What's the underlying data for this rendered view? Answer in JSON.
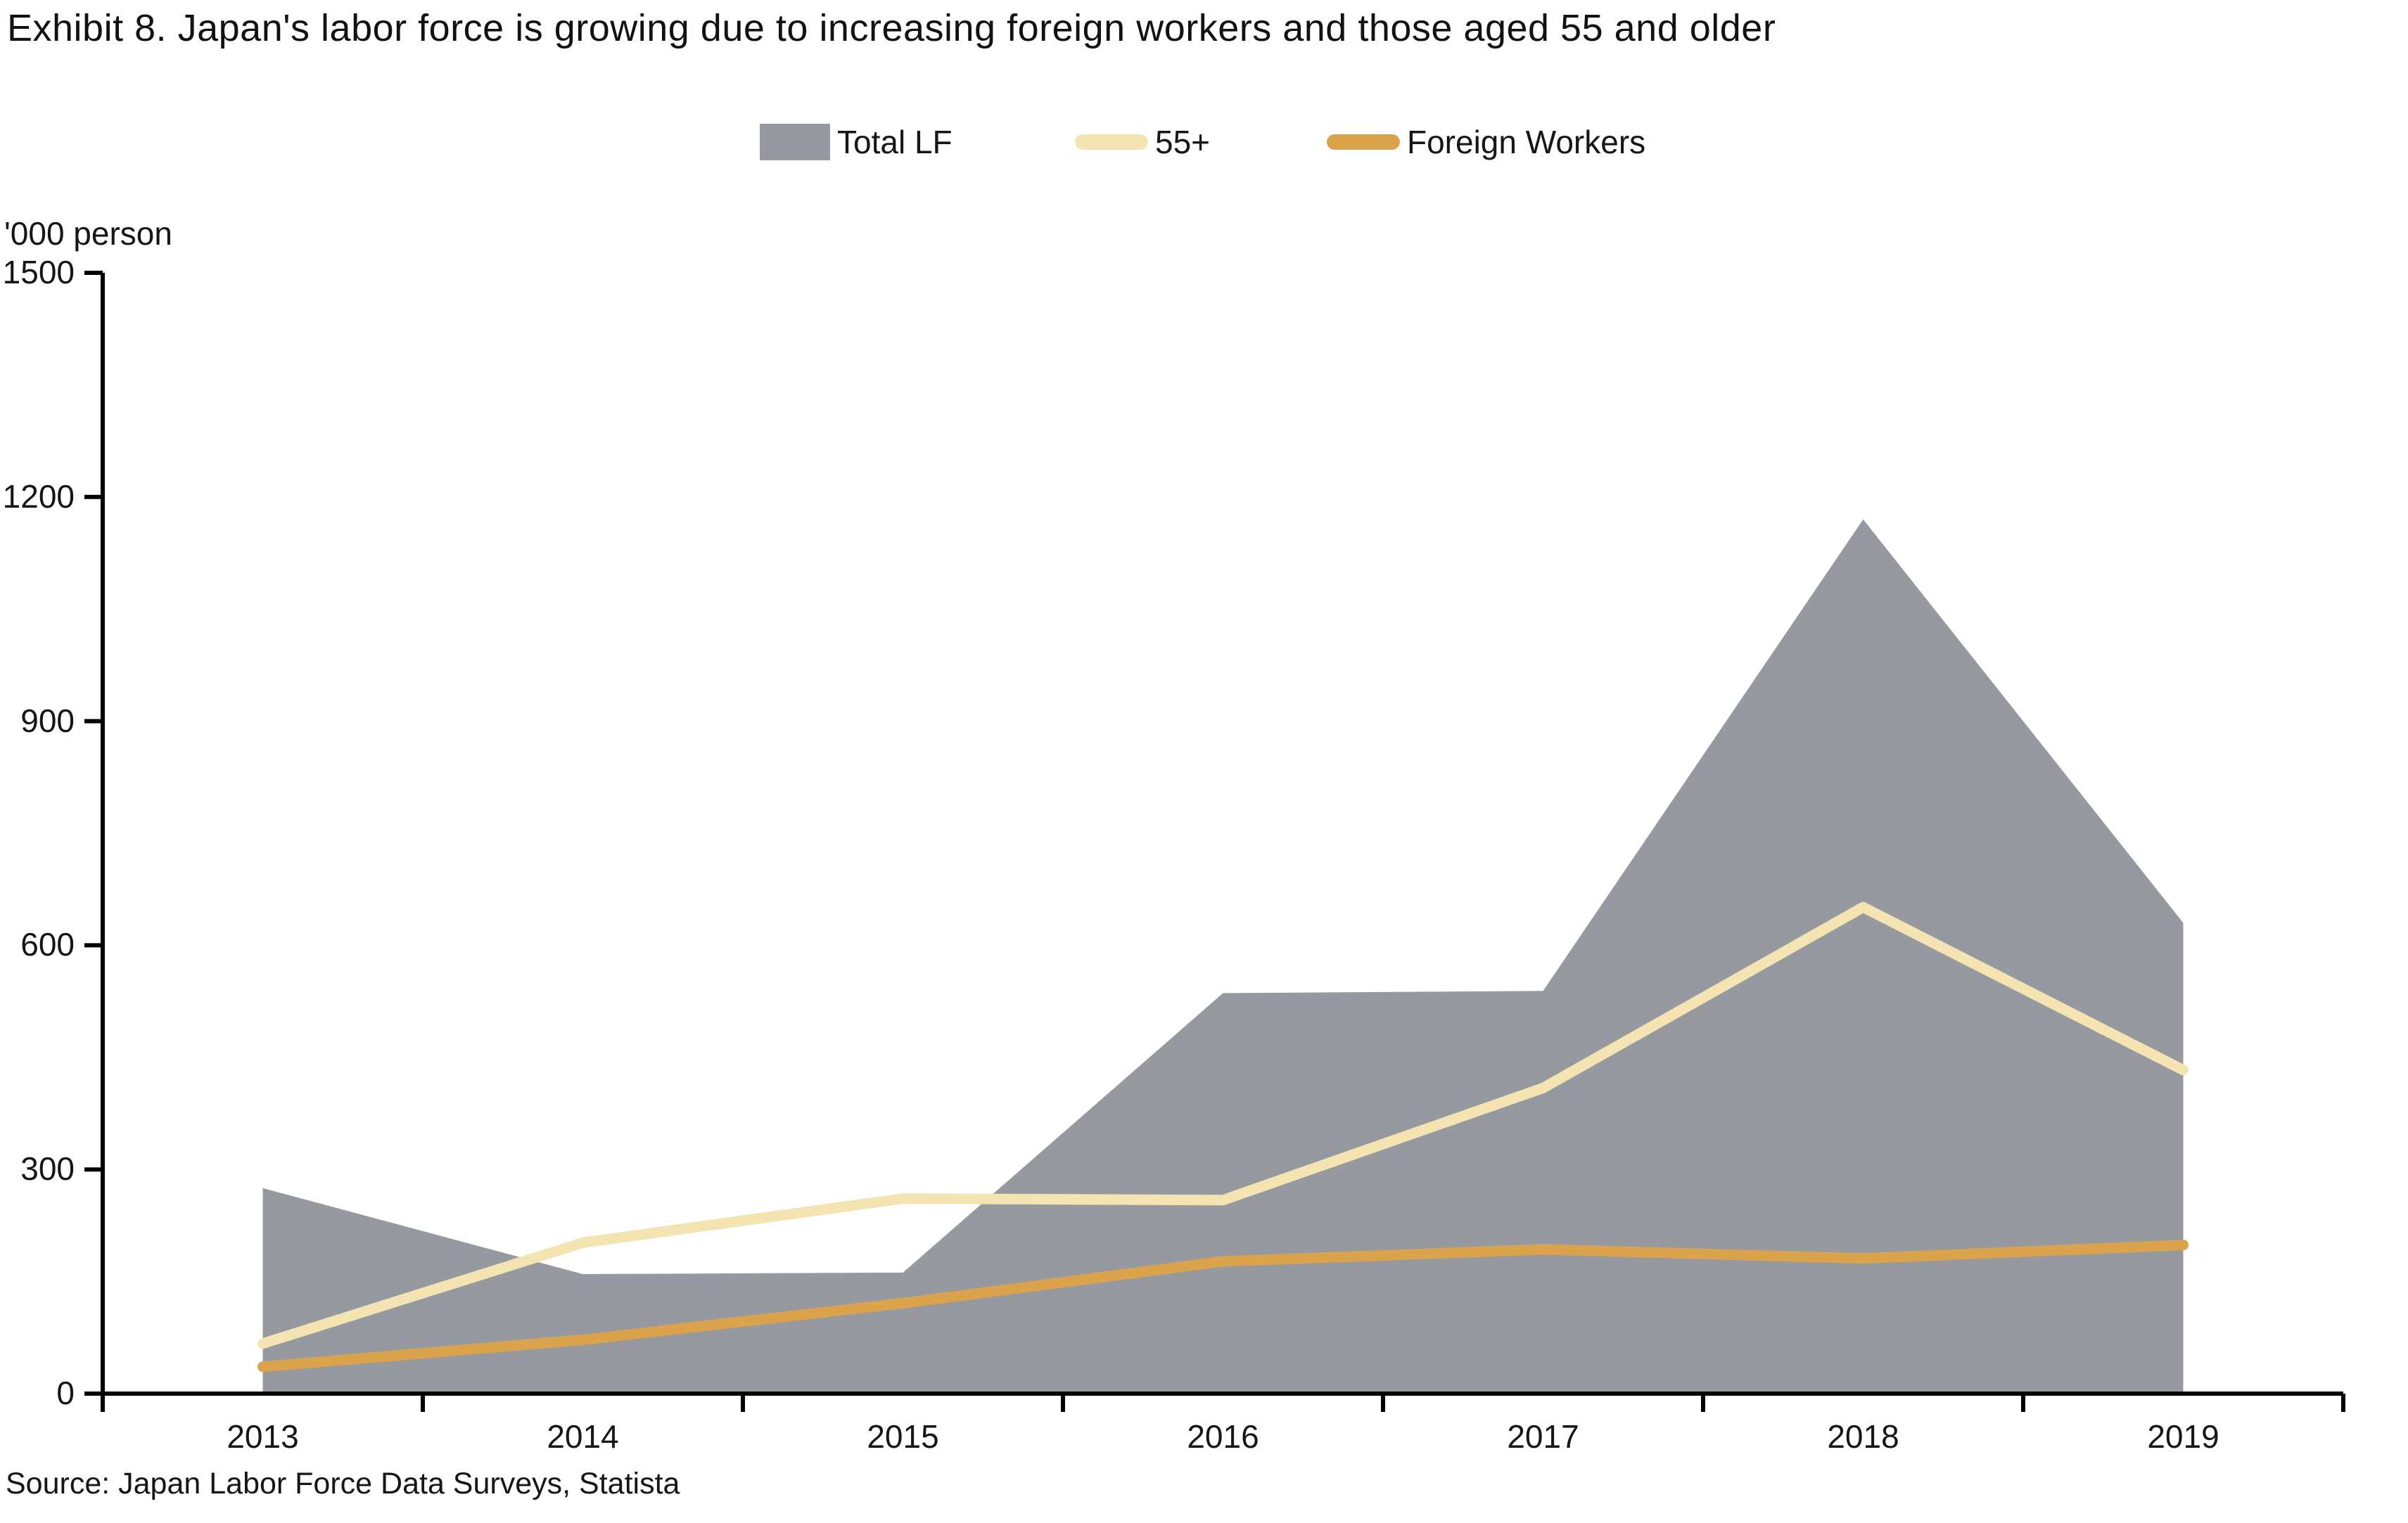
{
  "title": "Exhibit 8. Japan's labor force is growing due to increasing foreign workers and those aged 55 and older",
  "unit_label": "'000 person",
  "source": "Source: Japan Labor Force Data Surveys, Statista",
  "colors": {
    "total_lf_area": "#969AA0",
    "line_55plus": "#F3E4B1",
    "line_foreign_workers": "#DAA34C",
    "axis": "#000000",
    "text": "#161616"
  },
  "legend": [
    {
      "label": "Total LF",
      "type": "area",
      "color": "#969AA0"
    },
    {
      "label": "55+",
      "type": "line",
      "color": "#F3E4B1"
    },
    {
      "label": "Foreign Workers",
      "type": "line",
      "color": "#DAA34C"
    }
  ],
  "chart_data": {
    "type": "area",
    "subtype": "combo-area-and-lines",
    "title": "Exhibit 8. Japan's labor force is growing due to increasing foreign workers and those aged 55 and older",
    "categories": [
      "2013",
      "2014",
      "2015",
      "2016",
      "2017",
      "2018",
      "2019"
    ],
    "series": [
      {
        "name": "Total LF",
        "type": "area",
        "color": "#969AA0",
        "values": [
          275,
          160,
          162,
          536,
          539,
          1170,
          630
        ]
      },
      {
        "name": "55+",
        "type": "line",
        "color": "#F3E4B1",
        "values": [
          67,
          202,
          261,
          259,
          409,
          651,
          433
        ]
      },
      {
        "name": "Foreign Workers",
        "type": "line",
        "color": "#DAA34C",
        "values": [
          36,
          72,
          121,
          177,
          193,
          181,
          199
        ]
      }
    ],
    "xlabel": "",
    "ylabel": "'000 person",
    "ylim": [
      0,
      1500
    ],
    "y_ticks": [
      0,
      300,
      600,
      900,
      1200,
      1500
    ],
    "grid": false,
    "legend_position": "top-center"
  }
}
